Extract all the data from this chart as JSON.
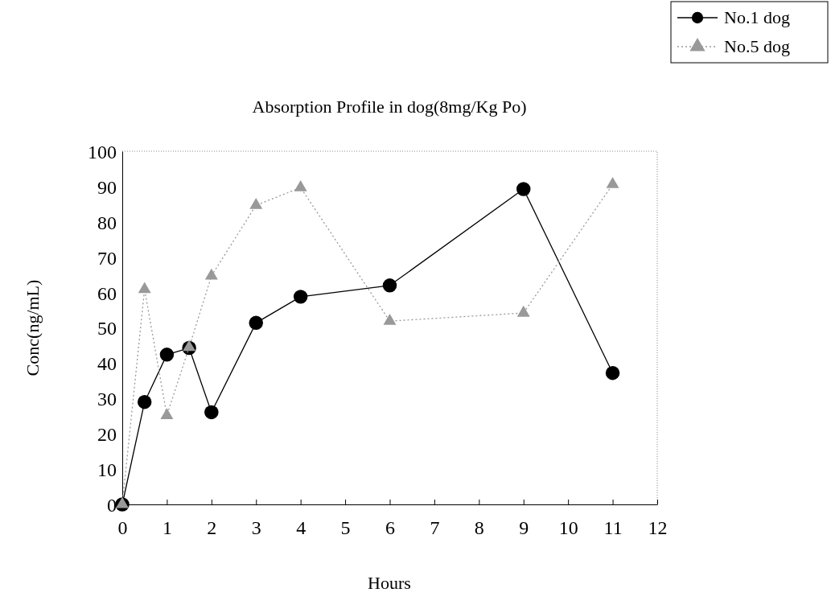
{
  "chart_data": {
    "type": "line",
    "title": "Absorption Profile in  dog(8mg/Kg Po)",
    "xlabel": "Hours",
    "ylabel": "Conc(ng/mL)",
    "x": [
      0,
      0.5,
      1,
      1.5,
      2,
      3,
      4,
      6,
      9,
      11
    ],
    "series": [
      {
        "name": "No.1 dog",
        "color": "#000000",
        "marker": "circle",
        "line_style": "solid",
        "values": [
          0,
          29,
          42.4,
          44.3,
          26.1,
          51.4,
          58.8,
          62,
          89.3,
          37.2
        ]
      },
      {
        "name": "No.5 dog",
        "color": "#999999",
        "marker": "triangle",
        "line_style": "dotted",
        "values": [
          0,
          60.9,
          25.2,
          44.5,
          64.7,
          84.7,
          89.7,
          51.9,
          54.2,
          90.6
        ]
      }
    ],
    "xlim": [
      0,
      12
    ],
    "xticks": [
      0,
      1,
      2,
      3,
      4,
      5,
      6,
      7,
      8,
      9,
      10,
      11,
      12
    ],
    "ylim": [
      0,
      100
    ],
    "yticks": [
      0,
      10,
      20,
      30,
      40,
      50,
      60,
      70,
      80,
      90,
      100
    ],
    "grid": false,
    "legend": "top right"
  }
}
